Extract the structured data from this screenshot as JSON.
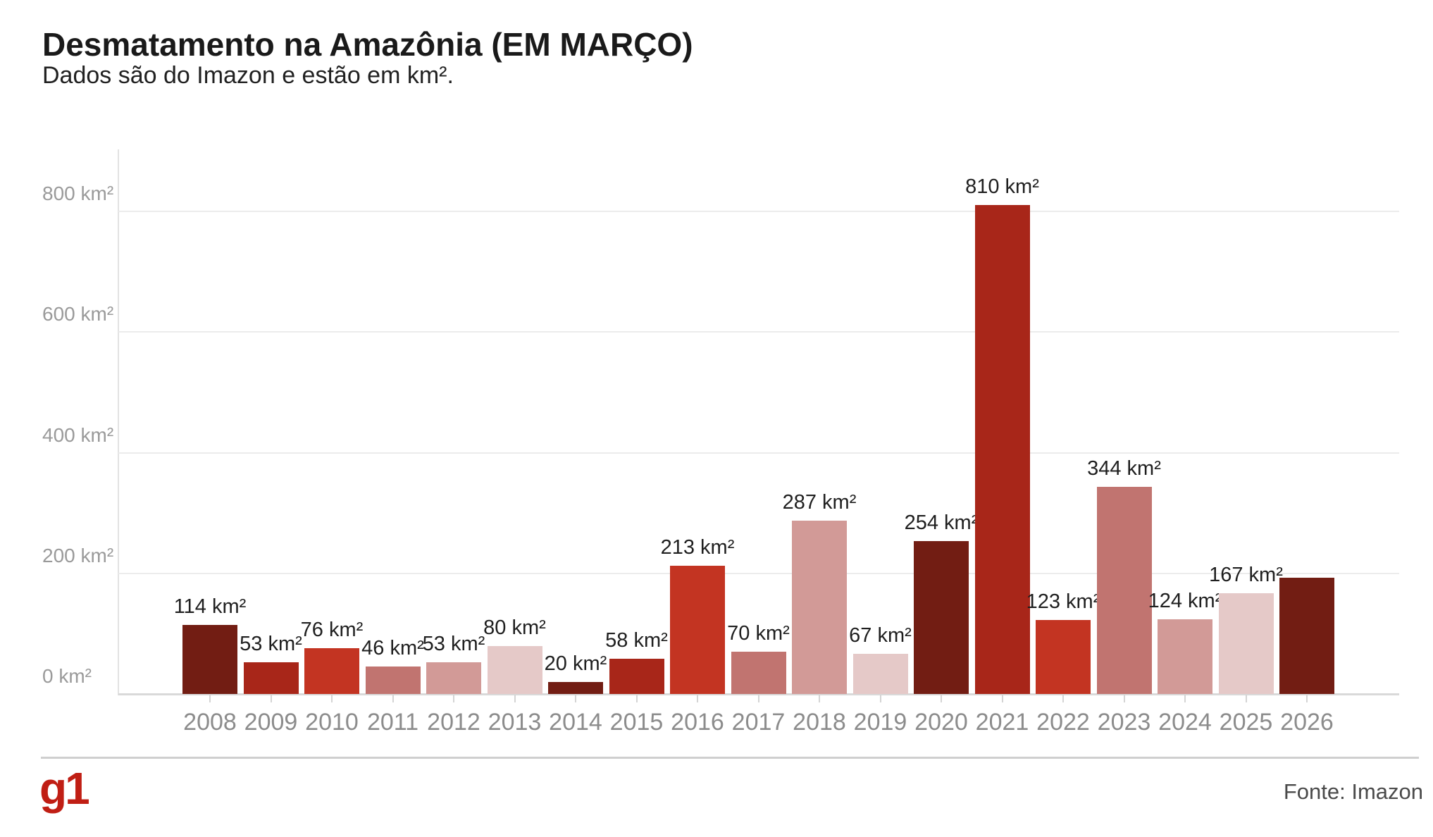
{
  "header": {
    "title": "Desmatamento na Amazônia (EM MARÇO)",
    "subtitle": "Dados são do Imazon e estão em km²."
  },
  "footer": {
    "logo_text": "g1",
    "logo_color": "#c01e14",
    "source": "Fonte: Imazon"
  },
  "palette": {
    "maroon": "#721d13",
    "dark_red": "#a82619",
    "red": "#c33422",
    "dusty_rose": "#c17470",
    "light_rose": "#d29a97",
    "pale_pink": "#e5c9c8"
  },
  "chart_data": {
    "type": "bar",
    "title": "Desmatamento na Amazônia (EM MARÇO)",
    "subtitle": "Dados são do Imazon e estão em km².",
    "unit": "km²",
    "source": "Fonte: Imazon",
    "grid": true,
    "y_axis": {
      "values": [
        0,
        200,
        400,
        600,
        800
      ],
      "ticks": [
        "0 km²",
        "200 km²",
        "400 km²",
        "600 km²",
        "800 km²"
      ],
      "range": [
        0,
        870
      ]
    },
    "categories": [
      "2008",
      "2009",
      "2010",
      "2011",
      "2012",
      "2013",
      "2014",
      "2015",
      "2016",
      "2017",
      "2018",
      "2019",
      "2020",
      "2021",
      "2022",
      "2023",
      "2024",
      "2025",
      "2026"
    ],
    "values": [
      114,
      53,
      76,
      46,
      53,
      80,
      20,
      58,
      213,
      70,
      287,
      67,
      254,
      810,
      123,
      344,
      124,
      167,
      193
    ],
    "bar_labels": [
      "114 km²",
      "53 km²",
      "76 km²",
      "46 km²",
      "53 km²",
      "80 km²",
      "20 km²",
      "58 km²",
      "213 km²",
      "70 km²",
      "287 km²",
      "67 km²",
      "254 km²",
      "810 km²",
      "123 km²",
      "344 km²",
      "124 km²",
      "167 km²",
      ""
    ],
    "bar_colors": [
      "maroon",
      "dark_red",
      "red",
      "dusty_rose",
      "light_rose",
      "pale_pink",
      "maroon",
      "dark_red",
      "red",
      "dusty_rose",
      "light_rose",
      "pale_pink",
      "maroon",
      "dark_red",
      "red",
      "dusty_rose",
      "light_rose",
      "pale_pink",
      "maroon"
    ]
  }
}
